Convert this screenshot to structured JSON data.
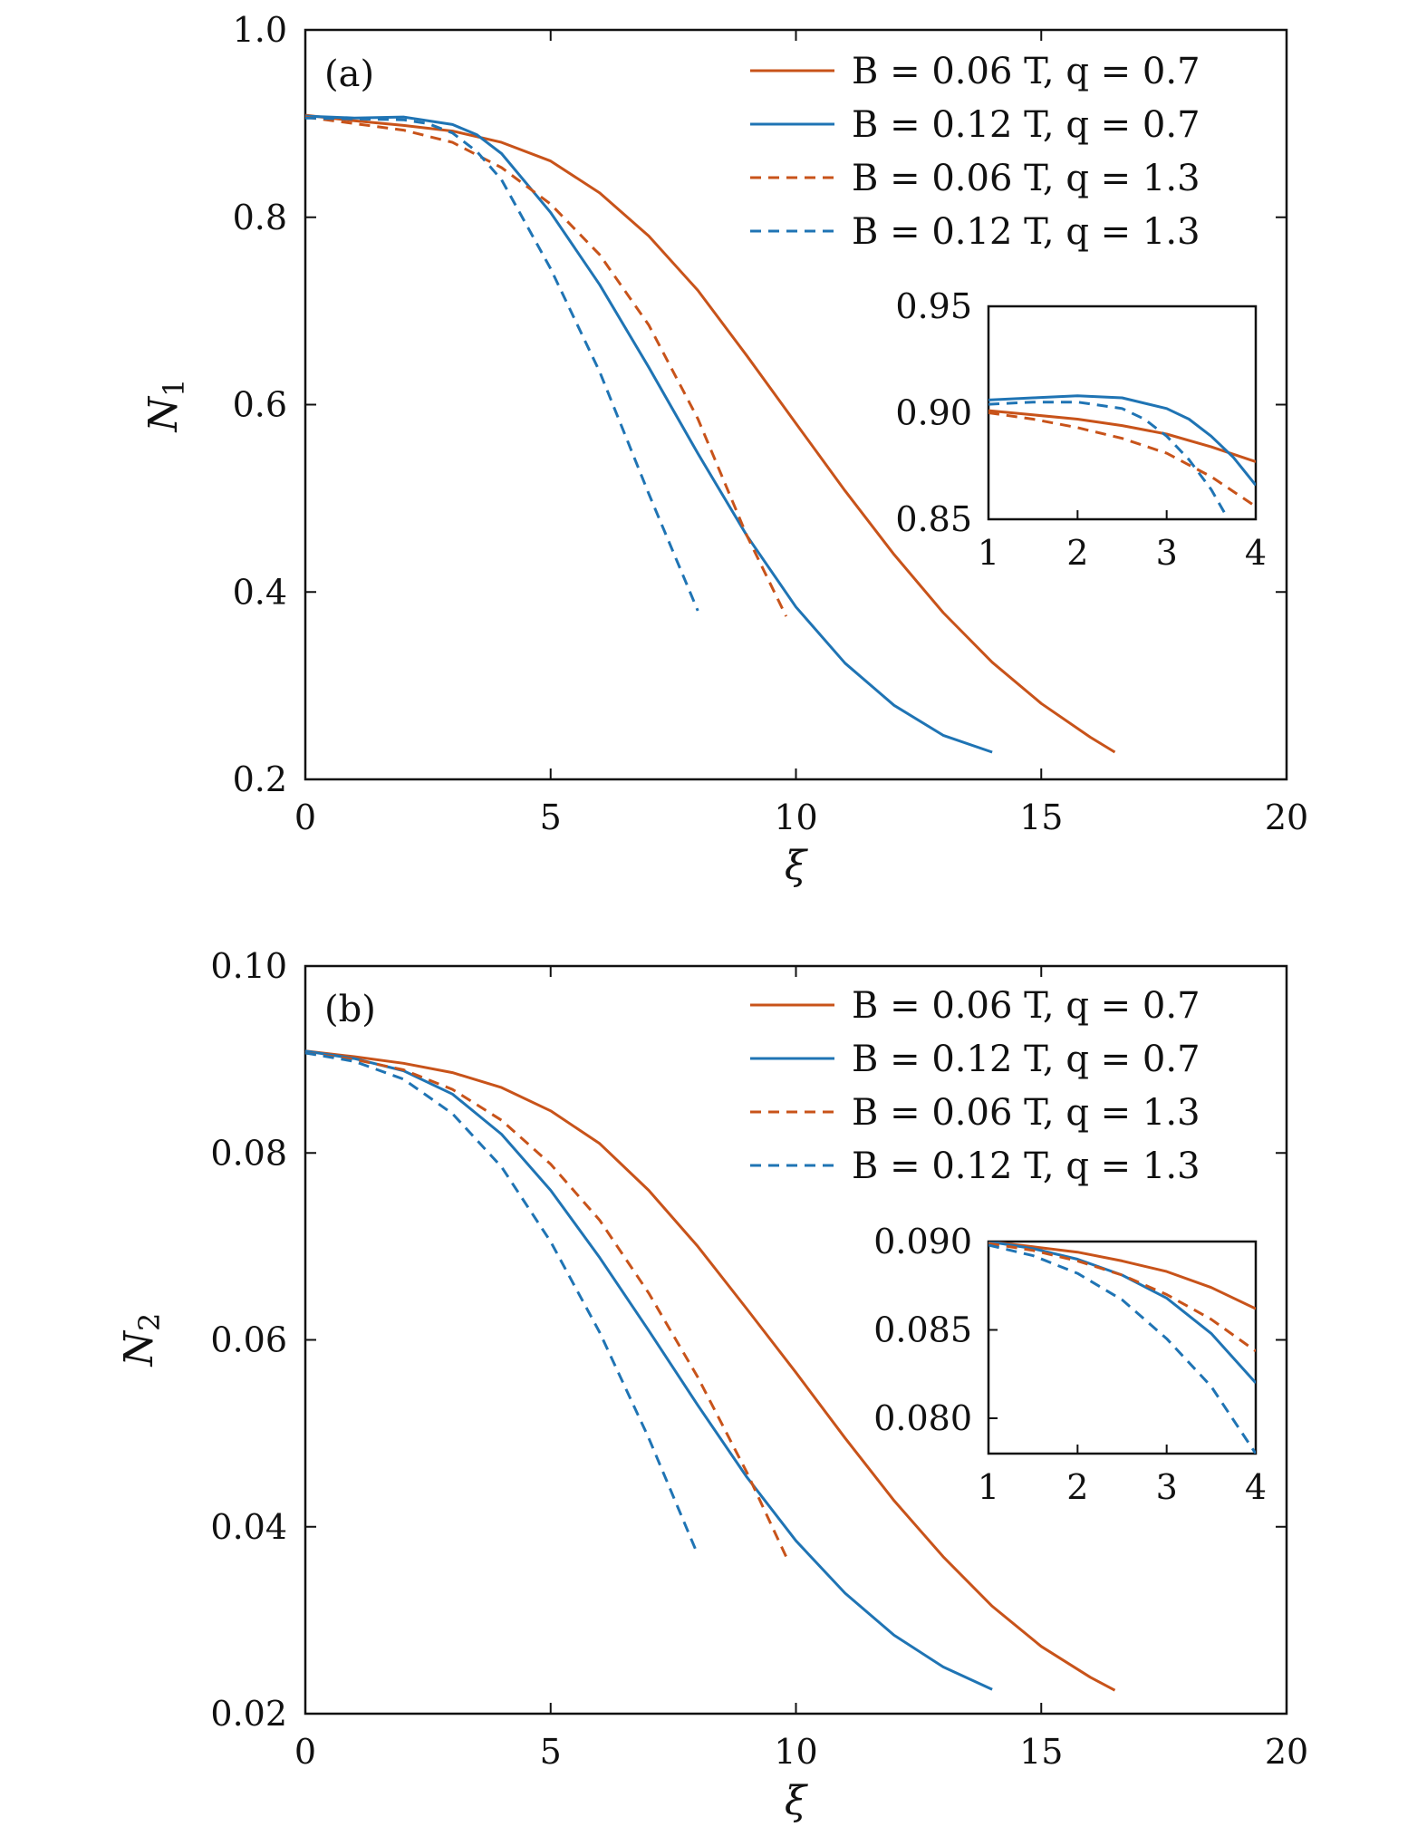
{
  "colors": {
    "orange": "#c8531a",
    "blue": "#1f74b4"
  },
  "chart_data": [
    {
      "id": "a",
      "type": "line",
      "panel_label": "(a)",
      "xlabel": "ξ",
      "ylabel_main": "N",
      "ylabel_sub": "1",
      "xlim": [
        0,
        20
      ],
      "ylim": [
        0.2,
        1.0
      ],
      "xticks": [
        0,
        5,
        10,
        15,
        20
      ],
      "xtick_labels": [
        "0",
        "5",
        "10",
        "15",
        "20"
      ],
      "yticks": [
        0.2,
        0.4,
        0.6,
        0.8,
        1.0
      ],
      "ytick_labels": [
        "0.2",
        "0.4",
        "0.6",
        "0.8",
        "1.0"
      ],
      "legend": {
        "position": "top-right"
      },
      "series": [
        {
          "name": "B = 0.06 T, q = 0.7",
          "color": "#c8531a",
          "dash": "solid",
          "x": [
            0,
            1,
            2,
            3,
            4,
            5,
            6,
            7,
            8,
            9,
            10,
            11,
            12,
            13,
            14,
            15,
            16,
            16.5
          ],
          "y": [
            0.909,
            0.903,
            0.898,
            0.892,
            0.88,
            0.86,
            0.826,
            0.78,
            0.722,
            0.652,
            0.58,
            0.508,
            0.44,
            0.378,
            0.325,
            0.281,
            0.245,
            0.229
          ]
        },
        {
          "name": "B = 0.12 T, q = 0.7",
          "color": "#1f74b4",
          "dash": "solid",
          "x": [
            0,
            1,
            2,
            3,
            3.5,
            4,
            5,
            6,
            7,
            8,
            9,
            10,
            11,
            12,
            13,
            14
          ],
          "y": [
            0.908,
            0.906,
            0.907,
            0.899,
            0.888,
            0.868,
            0.805,
            0.728,
            0.64,
            0.548,
            0.46,
            0.384,
            0.324,
            0.279,
            0.247,
            0.229
          ]
        },
        {
          "name": "B = 0.06 T, q = 1.3",
          "color": "#c8531a",
          "dash": "dashed",
          "x": [
            0,
            1,
            2,
            3,
            4,
            5,
            6,
            7,
            8,
            9,
            9.8
          ],
          "y": [
            0.907,
            0.9,
            0.893,
            0.88,
            0.853,
            0.814,
            0.76,
            0.685,
            0.585,
            0.46,
            0.374
          ]
        },
        {
          "name": "B = 0.12 T, q = 1.3",
          "color": "#1f74b4",
          "dash": "dashed",
          "x": [
            0,
            1,
            2,
            2.5,
            3,
            3.5,
            4,
            5,
            6,
            7,
            8
          ],
          "y": [
            0.906,
            0.905,
            0.904,
            0.9,
            0.89,
            0.87,
            0.84,
            0.745,
            0.635,
            0.505,
            0.38
          ]
        }
      ],
      "inset": {
        "xlim": [
          1,
          4
        ],
        "ylim": [
          0.85,
          0.95
        ],
        "xticks": [
          1,
          2,
          3,
          4
        ],
        "xtick_labels": [
          "1",
          "2",
          "3",
          "4"
        ],
        "yticks": [
          0.85,
          0.9,
          0.95
        ],
        "ytick_labels": [
          "0.85",
          "0.90",
          "0.95"
        ],
        "series": [
          {
            "color": "#c8531a",
            "dash": "solid",
            "x": [
              1,
              1.5,
              2,
              2.5,
              3,
              3.5,
              4
            ],
            "y": [
              0.901,
              0.899,
              0.897,
              0.894,
              0.89,
              0.884,
              0.877
            ]
          },
          {
            "color": "#1f74b4",
            "dash": "solid",
            "x": [
              1,
              1.5,
              2,
              2.5,
              3,
              3.25,
              3.5,
              3.75,
              4
            ],
            "y": [
              0.906,
              0.907,
              0.908,
              0.907,
              0.902,
              0.897,
              0.889,
              0.879,
              0.866
            ]
          },
          {
            "color": "#c8531a",
            "dash": "dashed",
            "x": [
              1,
              1.5,
              2,
              2.5,
              3,
              3.5,
              4
            ],
            "y": [
              0.9,
              0.897,
              0.893,
              0.888,
              0.881,
              0.87,
              0.856
            ]
          },
          {
            "color": "#1f74b4",
            "dash": "dashed",
            "x": [
              1,
              1.5,
              2,
              2.5,
              2.75,
              3,
              3.25,
              3.5,
              3.65
            ],
            "y": [
              0.904,
              0.905,
              0.905,
              0.902,
              0.897,
              0.889,
              0.878,
              0.864,
              0.853
            ]
          }
        ]
      }
    },
    {
      "id": "b",
      "type": "line",
      "panel_label": "(b)",
      "xlabel": "ξ",
      "ylabel_main": "N",
      "ylabel_sub": "2",
      "xlim": [
        0,
        20
      ],
      "ylim": [
        0.02,
        0.1
      ],
      "xticks": [
        0,
        5,
        10,
        15,
        20
      ],
      "xtick_labels": [
        "0",
        "5",
        "10",
        "15",
        "20"
      ],
      "yticks": [
        0.02,
        0.04,
        0.06,
        0.08,
        0.1
      ],
      "ytick_labels": [
        "0.02",
        "0.04",
        "0.06",
        "0.08",
        "0.10"
      ],
      "legend": {
        "position": "top-right"
      },
      "series": [
        {
          "name": "B = 0.06 T, q = 0.7",
          "color": "#c8531a",
          "dash": "solid",
          "x": [
            0,
            1,
            2,
            3,
            4,
            5,
            6,
            7,
            8,
            9,
            10,
            11,
            12,
            13,
            14,
            15,
            16,
            16.5
          ],
          "y": [
            0.0909,
            0.0903,
            0.0896,
            0.0886,
            0.087,
            0.0845,
            0.081,
            0.076,
            0.07,
            0.0633,
            0.0565,
            0.0495,
            0.0428,
            0.0368,
            0.0315,
            0.0272,
            0.0239,
            0.0225
          ]
        },
        {
          "name": "B = 0.12 T, q = 0.7",
          "color": "#1f74b4",
          "dash": "solid",
          "x": [
            0,
            1,
            2,
            3,
            4,
            5,
            6,
            7,
            8,
            9,
            10,
            11,
            12,
            13,
            14
          ],
          "y": [
            0.0909,
            0.0901,
            0.0888,
            0.0863,
            0.082,
            0.076,
            0.0688,
            0.061,
            0.053,
            0.0453,
            0.0385,
            0.0329,
            0.0284,
            0.025,
            0.0226
          ]
        },
        {
          "name": "B = 0.06 T, q = 1.3",
          "color": "#c8531a",
          "dash": "dashed",
          "x": [
            0,
            1,
            2,
            3,
            4,
            5,
            6,
            7,
            8,
            9,
            9.8
          ],
          "y": [
            0.0907,
            0.09,
            0.0889,
            0.0868,
            0.0835,
            0.0788,
            0.0728,
            0.065,
            0.056,
            0.0458,
            0.0368
          ]
        },
        {
          "name": "B = 0.12 T, q = 1.3",
          "color": "#1f74b4",
          "dash": "dashed",
          "x": [
            0,
            1,
            2,
            3,
            4,
            5,
            6,
            7,
            8
          ],
          "y": [
            0.0907,
            0.0898,
            0.0879,
            0.0842,
            0.0785,
            0.0705,
            0.0608,
            0.0495,
            0.037
          ]
        }
      ],
      "inset": {
        "xlim": [
          1,
          4
        ],
        "ylim": [
          0.078,
          0.09
        ],
        "xticks": [
          1,
          2,
          3,
          4
        ],
        "xtick_labels": [
          "1",
          "2",
          "3",
          "4"
        ],
        "yticks": [
          0.08,
          0.085,
          0.09
        ],
        "ytick_labels": [
          "0.080",
          "0.085",
          "0.090"
        ],
        "series": [
          {
            "color": "#c8531a",
            "dash": "solid",
            "x": [
              1,
              1.5,
              2,
              2.5,
              3,
              3.5,
              4
            ],
            "y": [
              0.09,
              0.0897,
              0.0894,
              0.0889,
              0.0883,
              0.0874,
              0.0862
            ]
          },
          {
            "color": "#1f74b4",
            "dash": "solid",
            "x": [
              1,
              1.5,
              2,
              2.5,
              3,
              3.5,
              4
            ],
            "y": [
              0.09,
              0.0896,
              0.089,
              0.0881,
              0.0868,
              0.0848,
              0.082
            ]
          },
          {
            "color": "#c8531a",
            "dash": "dashed",
            "x": [
              1,
              1.5,
              2,
              2.5,
              3,
              3.5,
              4
            ],
            "y": [
              0.0899,
              0.0895,
              0.0889,
              0.0881,
              0.087,
              0.0856,
              0.0838
            ]
          },
          {
            "color": "#1f74b4",
            "dash": "dashed",
            "x": [
              1,
              1.5,
              2,
              2.5,
              3,
              3.5,
              4
            ],
            "y": [
              0.0898,
              0.0892,
              0.0882,
              0.0867,
              0.0845,
              0.0818,
              0.078
            ]
          }
        ]
      }
    }
  ]
}
